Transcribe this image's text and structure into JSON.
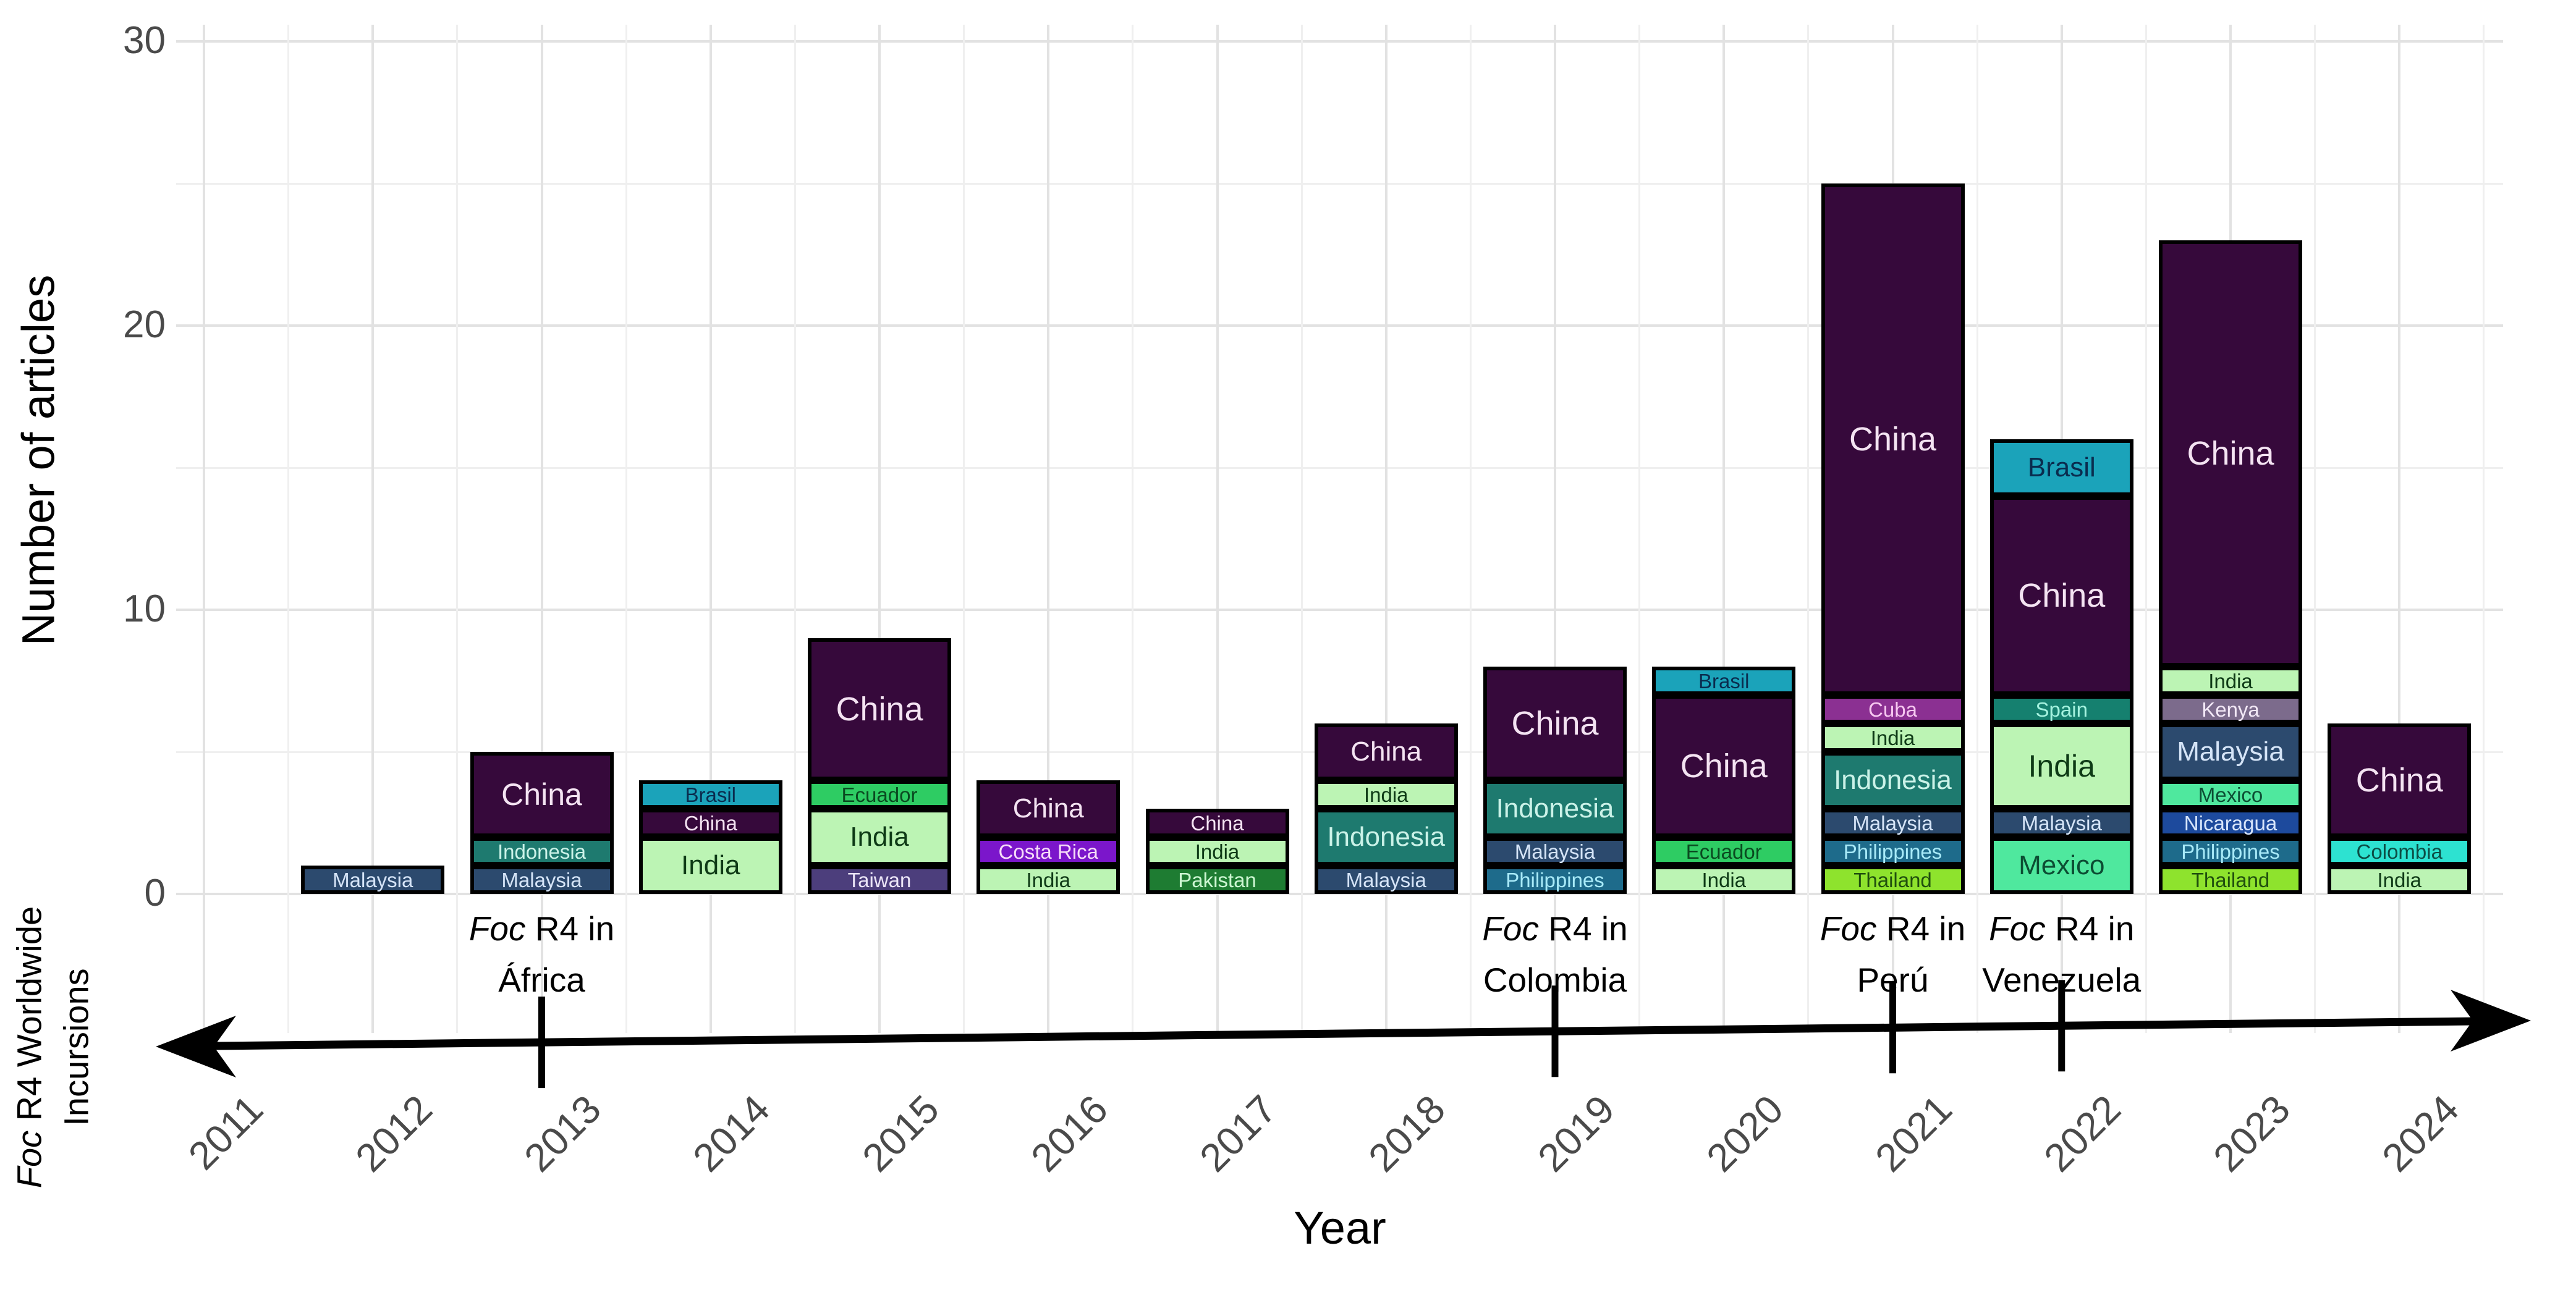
{
  "figure": {
    "y_axis_title": "Number of articles",
    "x_axis_title": "Year",
    "timeline_label_line1": "Foc R4 Worldwide",
    "timeline_label_line2": "Incursions",
    "y_ticks": [
      0,
      10,
      20,
      30
    ],
    "y_minor_ticks": [
      5,
      15,
      25
    ],
    "years": [
      2011,
      2012,
      2013,
      2014,
      2015,
      2016,
      2017,
      2018,
      2019,
      2020,
      2021,
      2022,
      2023,
      2024
    ]
  },
  "chart_data": {
    "type": "bar",
    "stacked": true,
    "title": "",
    "xlabel": "Year",
    "ylabel": "Number of articles",
    "ylim": [
      0,
      30
    ],
    "grid": "major and minor, light gray, white background",
    "x": [
      2011,
      2012,
      2013,
      2014,
      2015,
      2016,
      2017,
      2018,
      2019,
      2020,
      2021,
      2022,
      2023,
      2024
    ],
    "bars": [
      {
        "year": 2012,
        "total": 1,
        "segments": [
          {
            "label": "Malaysia",
            "value": 1
          }
        ]
      },
      {
        "year": 2013,
        "total": 5,
        "segments": [
          {
            "label": "Malaysia",
            "value": 1
          },
          {
            "label": "Indonesia",
            "value": 1
          },
          {
            "label": "China",
            "value": 3
          }
        ]
      },
      {
        "year": 2014,
        "total": 4,
        "segments": [
          {
            "label": "India",
            "value": 2
          },
          {
            "label": "China",
            "value": 1
          },
          {
            "label": "Brasil",
            "value": 1
          }
        ]
      },
      {
        "year": 2015,
        "total": 9,
        "segments": [
          {
            "label": "Taiwan",
            "value": 1
          },
          {
            "label": "India",
            "value": 2
          },
          {
            "label": "Ecuador",
            "value": 1
          },
          {
            "label": "China",
            "value": 5
          }
        ]
      },
      {
        "year": 2016,
        "total": 4,
        "segments": [
          {
            "label": "India",
            "value": 1
          },
          {
            "label": "Costa Rica",
            "value": 1
          },
          {
            "label": "China",
            "value": 2
          }
        ]
      },
      {
        "year": 2017,
        "total": 3,
        "segments": [
          {
            "label": "Pakistan",
            "value": 1
          },
          {
            "label": "India",
            "value": 1
          },
          {
            "label": "China",
            "value": 1
          }
        ]
      },
      {
        "year": 2018,
        "total": 6,
        "segments": [
          {
            "label": "Malaysia",
            "value": 1
          },
          {
            "label": "Indonesia",
            "value": 2
          },
          {
            "label": "India",
            "value": 1
          },
          {
            "label": "China",
            "value": 2
          }
        ]
      },
      {
        "year": 2019,
        "total": 8,
        "segments": [
          {
            "label": "Philippines",
            "value": 1
          },
          {
            "label": "Malaysia",
            "value": 1
          },
          {
            "label": "Indonesia",
            "value": 2
          },
          {
            "label": "China",
            "value": 4
          }
        ]
      },
      {
        "year": 2020,
        "total": 8,
        "segments": [
          {
            "label": "India",
            "value": 1
          },
          {
            "label": "Ecuador",
            "value": 1
          },
          {
            "label": "China",
            "value": 5
          },
          {
            "label": "Brasil",
            "value": 1
          }
        ]
      },
      {
        "year": 2021,
        "total": 25,
        "segments": [
          {
            "label": "Thailand",
            "value": 1
          },
          {
            "label": "Philippines",
            "value": 1
          },
          {
            "label": "Malaysia",
            "value": 1
          },
          {
            "label": "Indonesia",
            "value": 2
          },
          {
            "label": "India",
            "value": 1
          },
          {
            "label": "Cuba",
            "value": 1
          },
          {
            "label": "China",
            "value": 18
          }
        ]
      },
      {
        "year": 2022,
        "total": 16,
        "segments": [
          {
            "label": "Mexico",
            "value": 2
          },
          {
            "label": "Malaysia",
            "value": 1
          },
          {
            "label": "India",
            "value": 3
          },
          {
            "label": "Spain",
            "value": 1
          },
          {
            "label": "China",
            "value": 7
          },
          {
            "label": "Brasil",
            "value": 2
          }
        ]
      },
      {
        "year": 2023,
        "total": 23,
        "segments": [
          {
            "label": "Thailand",
            "value": 1
          },
          {
            "label": "Philippines",
            "value": 1
          },
          {
            "label": "Nicaragua",
            "value": 1
          },
          {
            "label": "Mexico",
            "value": 1
          },
          {
            "label": "Malaysia",
            "value": 2
          },
          {
            "label": "Kenya",
            "value": 1
          },
          {
            "label": "India",
            "value": 1
          },
          {
            "label": "China",
            "value": 15
          }
        ]
      },
      {
        "year": 2024,
        "total": 6,
        "segments": [
          {
            "label": "India",
            "value": 1
          },
          {
            "label": "Colombia",
            "value": 1
          },
          {
            "label": "China",
            "value": 4
          }
        ]
      }
    ],
    "annotations": [
      {
        "year": 2013,
        "lines": [
          "Foc R4 in",
          "África"
        ]
      },
      {
        "year": 2019,
        "lines": [
          "Foc R4 in",
          "Colombia"
        ]
      },
      {
        "year": 2021,
        "lines": [
          "Foc R4 in",
          "Perú"
        ]
      },
      {
        "year": 2022,
        "lines": [
          "Foc R4 in",
          "Venezuela"
        ]
      }
    ],
    "country_colors": {
      "China": "#36093B",
      "Malaysia": "#2C4A6E",
      "Indonesia": "#1E7A6F",
      "India": "#BCF4B4",
      "Brasil": "#1BA3BA",
      "Ecuador": "#2ECC63",
      "Taiwan": "#4C3E7C",
      "Costa Rica": "#7B16CB",
      "Pakistan": "#1E7C32",
      "Philippines": "#1E6B8B",
      "Cuba": "#8B3092",
      "Thailand": "#8EE32D",
      "Spain": "#15806F",
      "Mexico": "#4FE89E",
      "Kenya": "#7C6B8C",
      "Nicaragua": "#1D4A9D",
      "Colombia": "#2DE2D1"
    },
    "country_text_colors": {
      "China": "#F4E3F2",
      "Malaysia": "#D5E4F7",
      "Indonesia": "#CBF2E8",
      "India": "#0E3A16",
      "Brasil": "#0A2C4E",
      "Ecuador": "#0A4A20",
      "Taiwan": "#EAE4F6",
      "Costa Rica": "#F6DCF8",
      "Pakistan": "#CDF6D2",
      "Philippines": "#A8EAF8",
      "Cuba": "#F6C8F0",
      "Thailand": "#204F0E",
      "Spain": "#A5F2DF",
      "Mexico": "#0C4D33",
      "Kenya": "#F2E8F6",
      "Nicaragua": "#D6E4FA",
      "Colombia": "#0C4D45"
    }
  }
}
